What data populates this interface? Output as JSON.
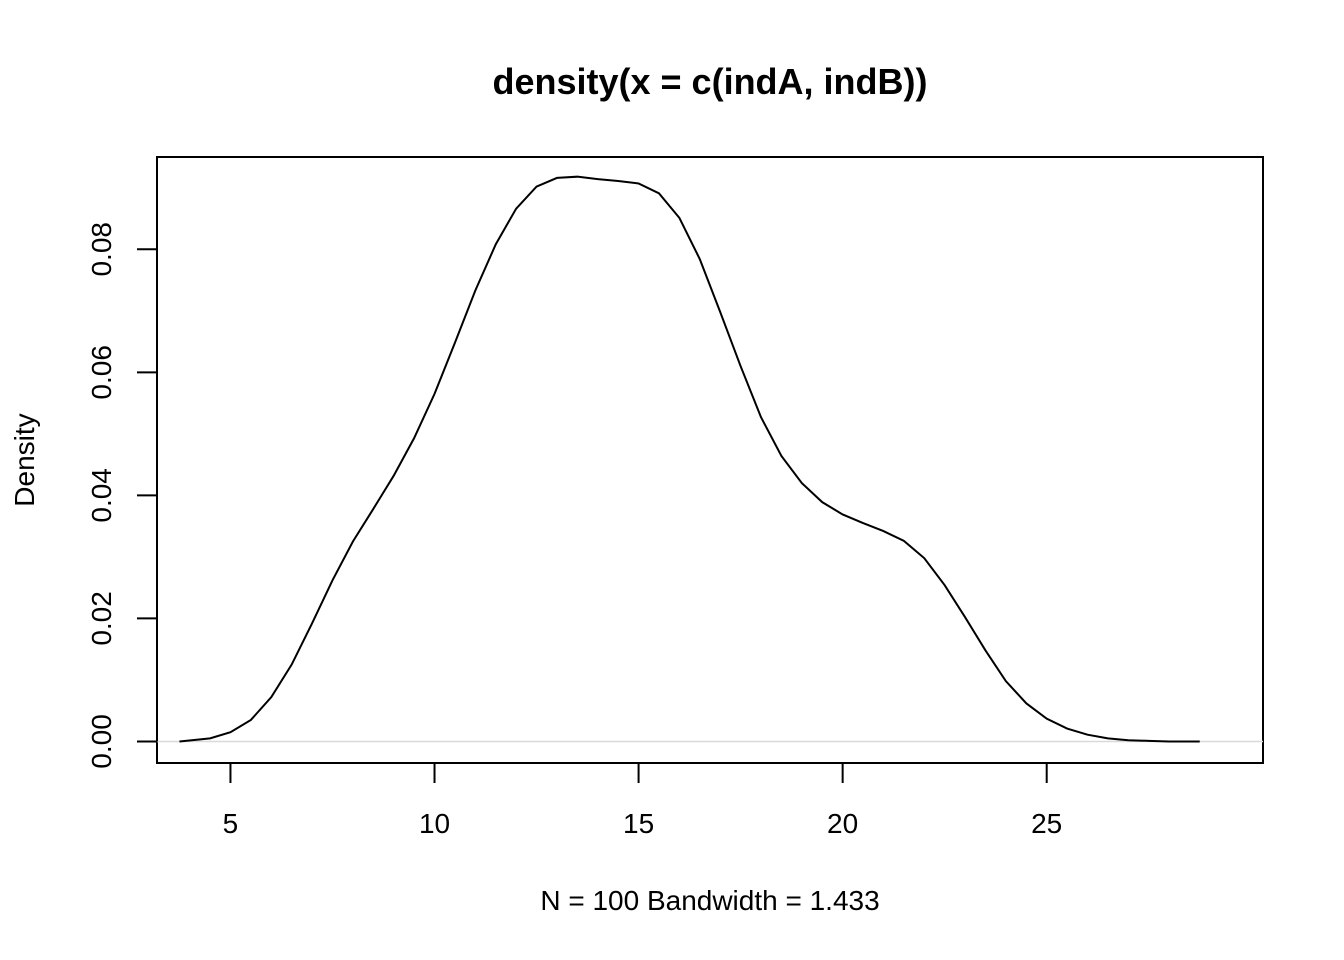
{
  "chart_data": {
    "type": "line",
    "title": "density(x = c(indA, indB))",
    "xlabel": "N = 100   Bandwidth = 1.433",
    "ylabel": "Density",
    "xlim": [
      3.2,
      30.3
    ],
    "ylim": [
      -0.0035,
      0.095
    ],
    "x_ticks": [
      5,
      10,
      15,
      20,
      25
    ],
    "x_tick_labels": [
      "5",
      "10",
      "15",
      "20",
      "25"
    ],
    "y_ticks": [
      0.0,
      0.02,
      0.04,
      0.06,
      0.08
    ],
    "y_tick_labels": [
      "0.00",
      "0.02",
      "0.04",
      "0.06",
      "0.08"
    ],
    "grid": false,
    "zero_line": true,
    "colors": {
      "line": "#000000",
      "zero_line": "#d9d9d9"
    },
    "series": [
      {
        "x": [
          3.75,
          4.5,
          5.0,
          5.5,
          6.0,
          6.5,
          7.0,
          7.5,
          8.0,
          8.5,
          9.0,
          9.5,
          10.0,
          10.5,
          11.0,
          11.5,
          12.0,
          12.5,
          13.0,
          13.5,
          14.0,
          14.5,
          15.0,
          15.5,
          16.0,
          16.5,
          17.0,
          17.5,
          18.0,
          18.5,
          19.0,
          19.5,
          20.0,
          20.5,
          21.0,
          21.5,
          22.0,
          22.5,
          23.0,
          23.5,
          24.0,
          24.5,
          25.0,
          25.5,
          26.0,
          26.5,
          27.0,
          27.5,
          28.0,
          28.75
        ],
        "y": [
          0.0,
          0.0005,
          0.0015,
          0.0035,
          0.0072,
          0.0125,
          0.0192,
          0.0262,
          0.0325,
          0.0378,
          0.0432,
          0.0493,
          0.0565,
          0.0648,
          0.0733,
          0.0808,
          0.0866,
          0.0902,
          0.0916,
          0.0918,
          0.0914,
          0.0911,
          0.0907,
          0.0891,
          0.0851,
          0.0784,
          0.0698,
          0.061,
          0.0527,
          0.0464,
          0.042,
          0.0389,
          0.0369,
          0.0355,
          0.0342,
          0.0326,
          0.0298,
          0.0254,
          0.0202,
          0.0148,
          0.0098,
          0.0062,
          0.0037,
          0.0021,
          0.0011,
          0.0005,
          0.0002,
          0.0001,
          0.0,
          0.0
        ]
      }
    ]
  }
}
